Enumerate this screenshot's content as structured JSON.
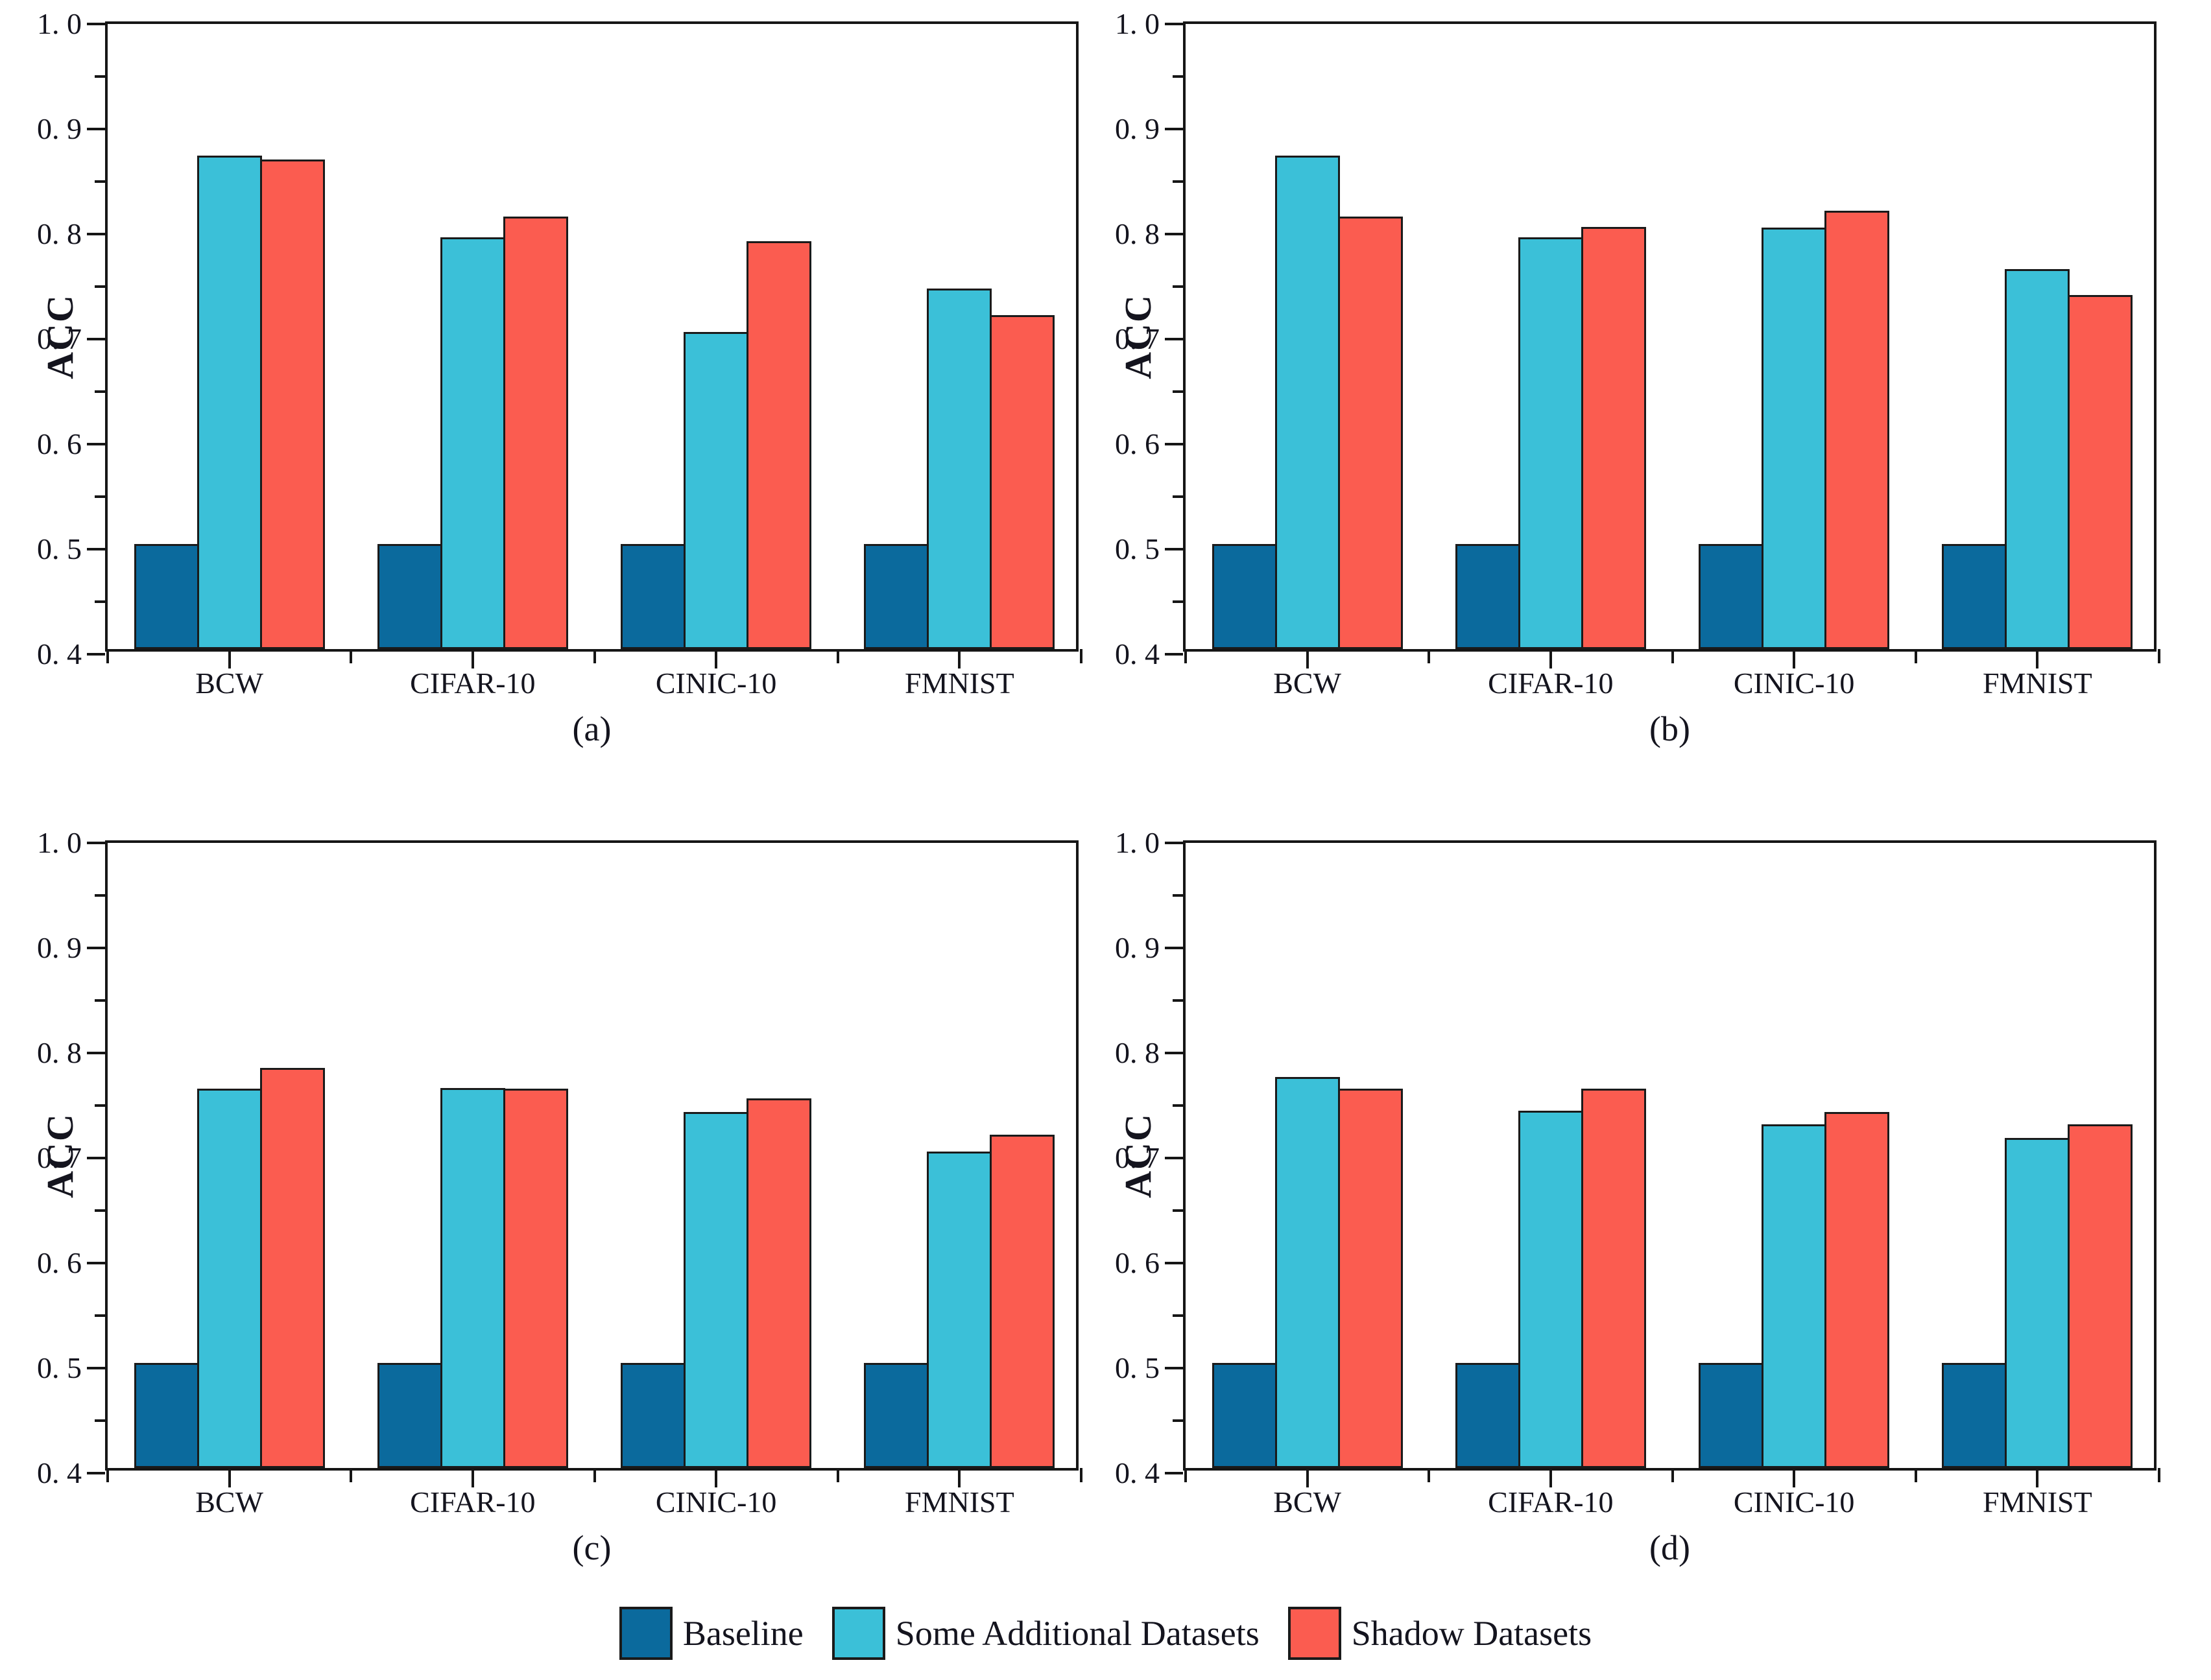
{
  "figure": {
    "background": "#ffffff",
    "text_color": "#14141e",
    "axis_color": "#161616",
    "bar_border_color": "#1a1a1a",
    "ylabel": "ACC",
    "ylim": [
      0.4,
      1.0
    ],
    "ytick_labels": [
      "1. 0",
      "0. 9",
      "0. 8",
      "0. 7",
      "0. 6",
      "0. 5",
      "0. 4"
    ],
    "ytick_values": [
      1.0,
      0.9,
      0.8,
      0.7,
      0.6,
      0.5,
      0.4
    ],
    "minor_tick_step": 0.05,
    "grid": "off",
    "legend_position": "bottom-center"
  },
  "series_colors": {
    "Baseline": "#0B6A9D",
    "Some Additional Datasets": "#3BC0D8",
    "Shadow Datasets": "#FB5C50"
  },
  "legend": {
    "items": [
      {
        "label": "Baseline",
        "color": "#0B6A9D"
      },
      {
        "label": "Some Additional Datasets",
        "color": "#3BC0D8"
      },
      {
        "label": "Shadow Datasets",
        "color": "#FB5C50"
      }
    ]
  },
  "chart_data": [
    {
      "type": "bar",
      "caption": "(a)",
      "ylabel": "ACC",
      "ylim": [
        0.4,
        1.0
      ],
      "categories": [
        "BCW",
        "CIFAR-10",
        "CINIC-10",
        "FMNIST"
      ],
      "series": [
        {
          "name": "Baseline",
          "values": [
            0.5,
            0.5,
            0.5,
            0.5
          ]
        },
        {
          "name": "Some Additional Datasets",
          "values": [
            0.87,
            0.792,
            0.702,
            0.743
          ]
        },
        {
          "name": "Shadow Datasets",
          "values": [
            0.866,
            0.812,
            0.788,
            0.718
          ]
        }
      ]
    },
    {
      "type": "bar",
      "caption": "(b)",
      "ylabel": "ACC",
      "ylim": [
        0.4,
        1.0
      ],
      "categories": [
        "BCW",
        "CIFAR-10",
        "CINIC-10",
        "FMNIST"
      ],
      "series": [
        {
          "name": "Baseline",
          "values": [
            0.5,
            0.5,
            0.5,
            0.5
          ]
        },
        {
          "name": "Some Additional Datasets",
          "values": [
            0.87,
            0.792,
            0.801,
            0.762
          ]
        },
        {
          "name": "Shadow Datasets",
          "values": [
            0.812,
            0.802,
            0.817,
            0.737
          ]
        }
      ]
    },
    {
      "type": "bar",
      "caption": "(c)",
      "ylabel": "ACC",
      "ylim": [
        0.4,
        1.0
      ],
      "categories": [
        "BCW",
        "CIFAR-10",
        "CINIC-10",
        "FMNIST"
      ],
      "series": [
        {
          "name": "Baseline",
          "values": [
            0.5,
            0.5,
            0.5,
            0.5
          ]
        },
        {
          "name": "Some Additional Datasets",
          "values": [
            0.761,
            0.762,
            0.739,
            0.701
          ]
        },
        {
          "name": "Shadow Datasets",
          "values": [
            0.781,
            0.761,
            0.752,
            0.717
          ]
        }
      ]
    },
    {
      "type": "bar",
      "caption": "(d)",
      "ylabel": "ACC",
      "ylim": [
        0.4,
        1.0
      ],
      "categories": [
        "BCW",
        "CIFAR-10",
        "CINIC-10",
        "FMNIST"
      ],
      "series": [
        {
          "name": "Baseline",
          "values": [
            0.5,
            0.5,
            0.5,
            0.5
          ]
        },
        {
          "name": "Some Additional Datasets",
          "values": [
            0.772,
            0.74,
            0.727,
            0.714
          ]
        },
        {
          "name": "Shadow Datasets",
          "values": [
            0.761,
            0.761,
            0.739,
            0.727
          ]
        }
      ]
    }
  ]
}
